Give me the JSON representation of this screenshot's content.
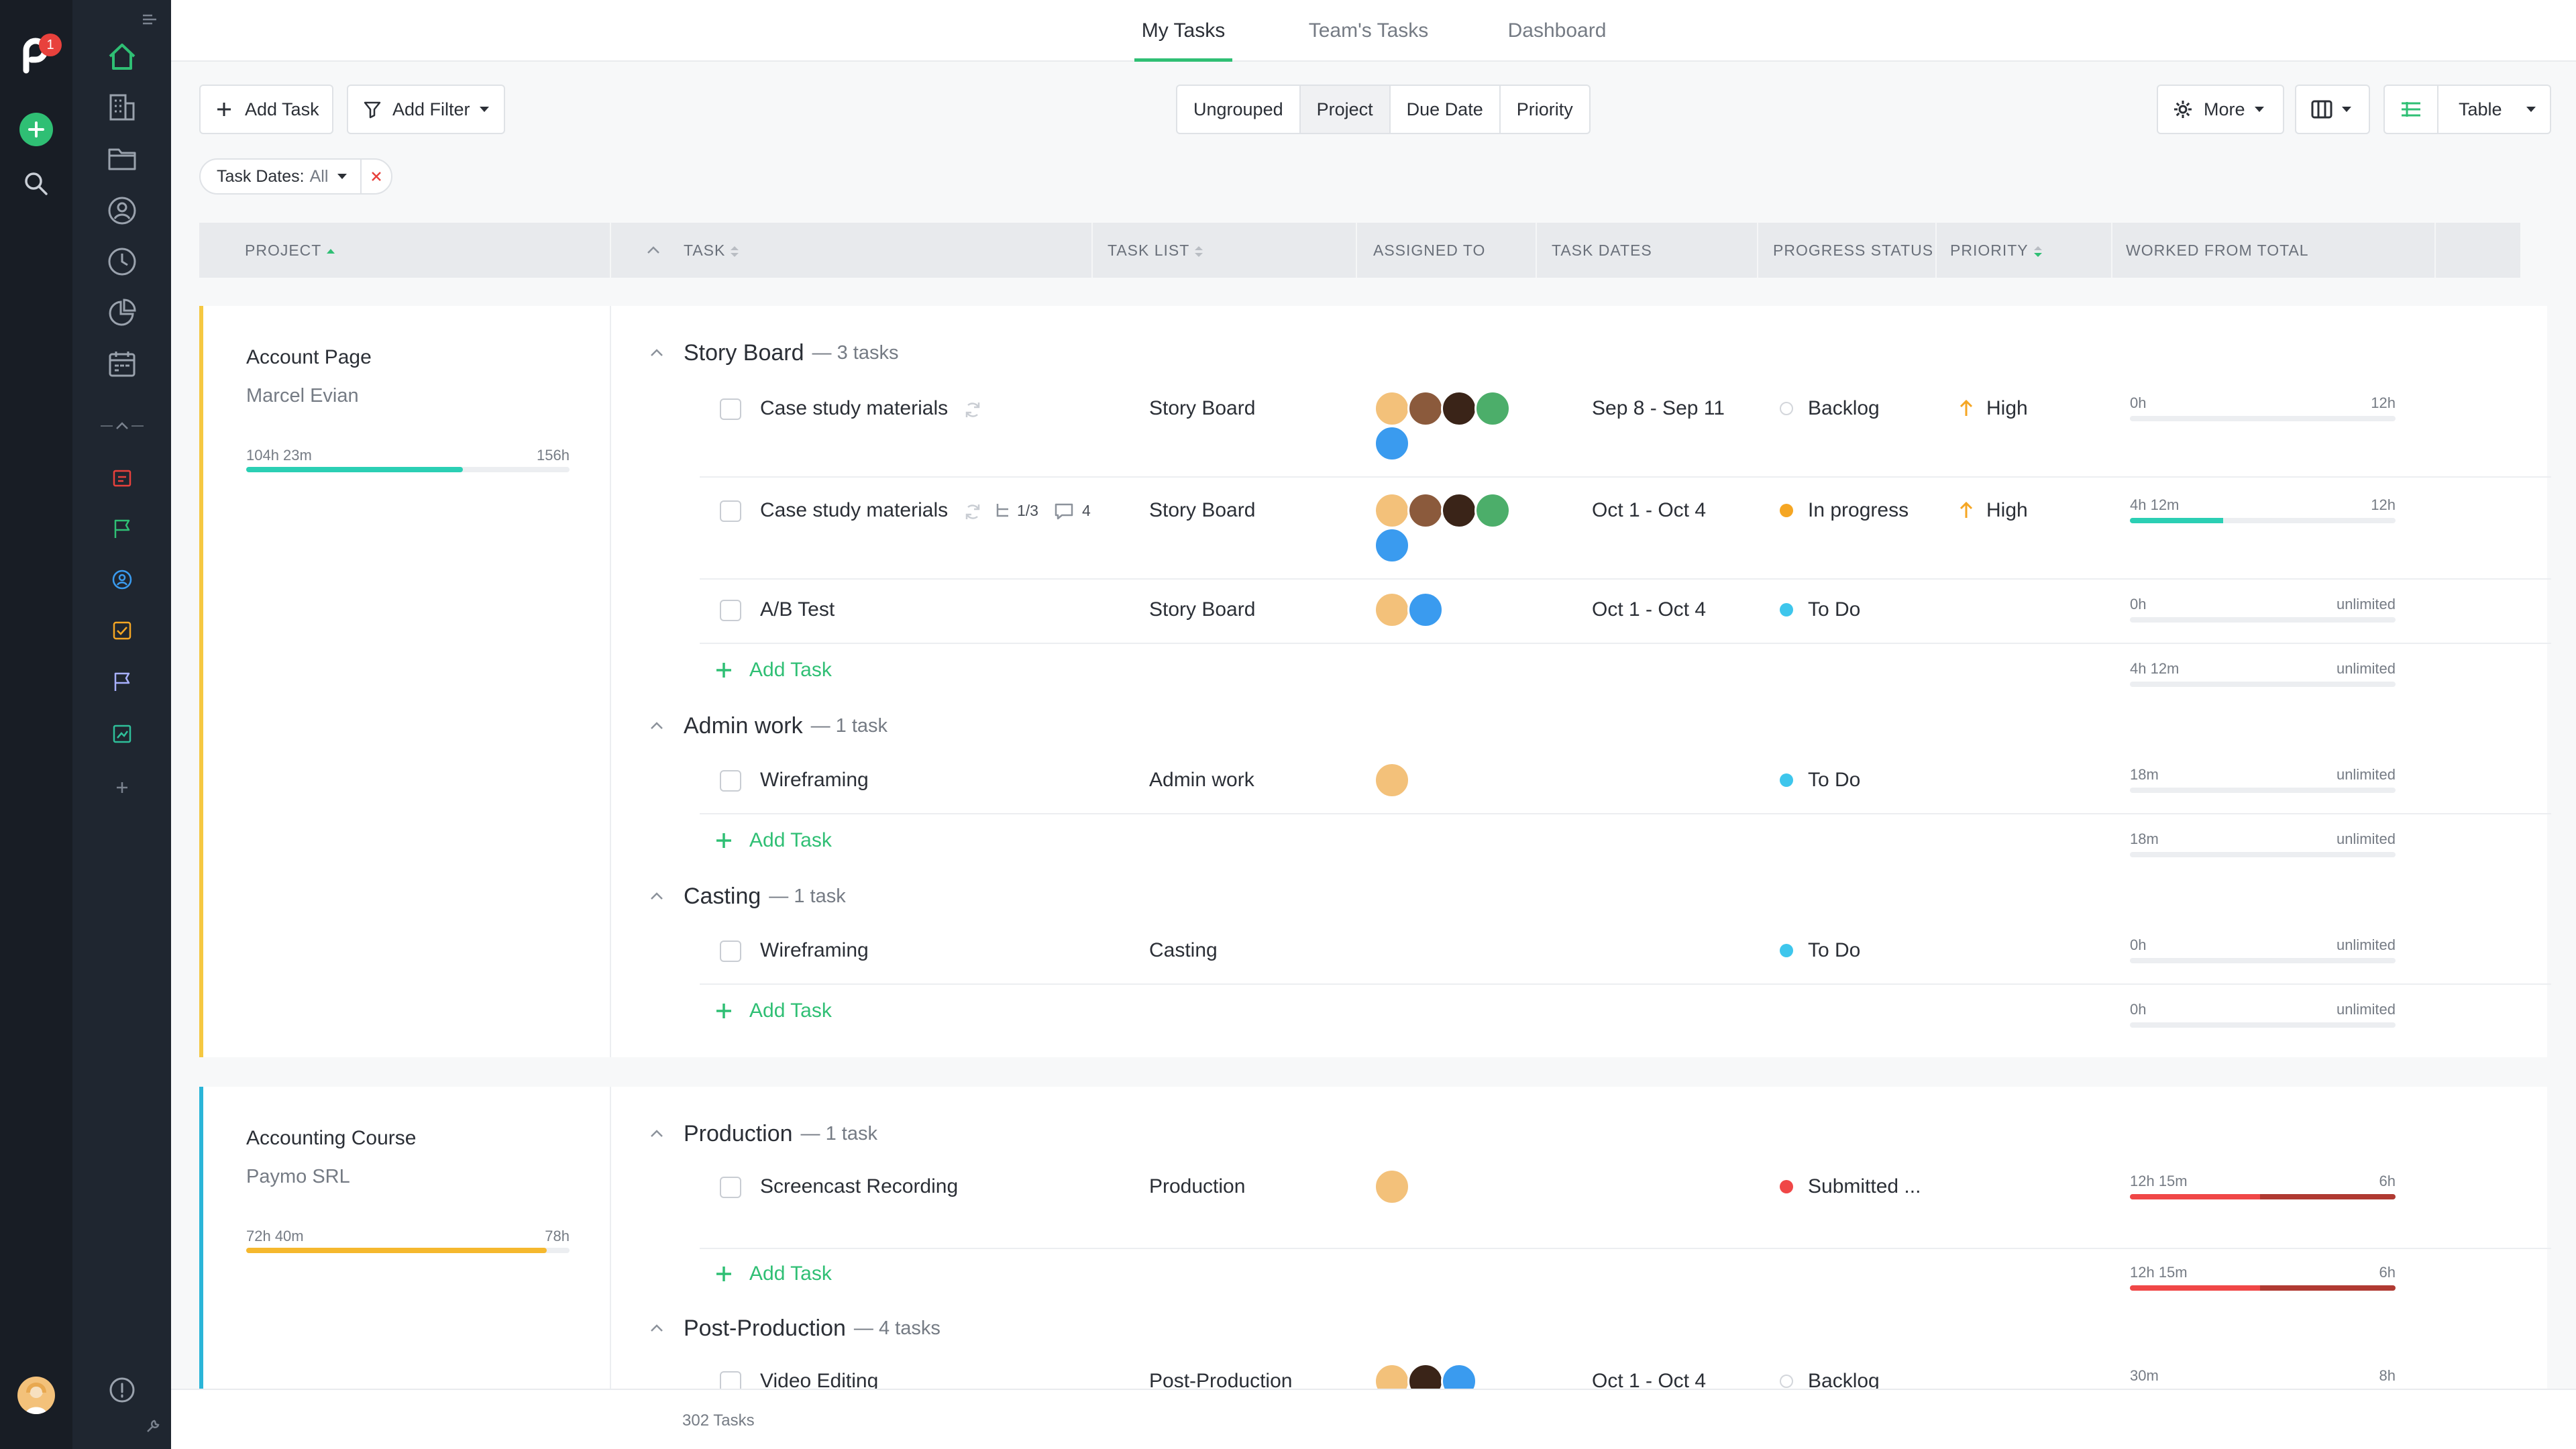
{
  "app": {
    "notification_count": "1"
  },
  "topnav": {
    "tabs": [
      "My Tasks",
      "Team's Tasks",
      "Dashboard"
    ]
  },
  "toolbar": {
    "add_task": "Add Task",
    "add_filter": "Add Filter",
    "grouping": [
      "Ungrouped",
      "Project",
      "Due Date",
      "Priority"
    ],
    "active_grouping": "Project",
    "more": "More",
    "view": "Table"
  },
  "filter_chip": {
    "label": "Task Dates:",
    "value": "All"
  },
  "columns": {
    "project": "PROJECT",
    "task": "TASK",
    "task_list": "TASK LIST",
    "assigned_to": "ASSIGNED TO",
    "task_dates": "TASK DATES",
    "progress_status": "PROGRESS STATUS",
    "priority": "PRIORITY",
    "worked_from_total": "WORKED FROM TOTAL"
  },
  "add_task_label": "Add Task",
  "projects": [
    {
      "name": "Account Page",
      "client": "Marcel Evian",
      "worked": "104h 23m",
      "total": "156h",
      "progress": 0.67,
      "accent": "#f5c842",
      "groups": [
        {
          "name": "Story Board",
          "count": "— 3 tasks",
          "totals": {
            "worked": "4h 12m",
            "total": "unlimited"
          }
        },
        {
          "name": "Admin work",
          "count": "— 1 task",
          "totals": {
            "worked": "18m",
            "total": "unlimited"
          }
        },
        {
          "name": "Casting",
          "count": "— 1 task",
          "totals": {
            "worked": "0h",
            "total": "unlimited"
          }
        }
      ],
      "tasks": [
        {
          "name": "Case study materials",
          "list": "Story Board",
          "dates": "Sep 8 - Sep 11",
          "status": "Backlog",
          "priority": "High",
          "worked": "0h",
          "total": "12h"
        },
        {
          "name": "Case study materials",
          "subtasks": "1/3",
          "comments": "4",
          "list": "Story Board",
          "dates": "Oct 1 - Oct 4",
          "status": "In progress",
          "priority": "High",
          "worked": "4h 12m",
          "total": "12h"
        },
        {
          "name": "A/B Test",
          "list": "Story Board",
          "dates": "Oct 1 - Oct 4",
          "status": "To Do",
          "worked": "0h",
          "total": "unlimited"
        },
        {
          "name": "Wireframing",
          "list": "Admin work",
          "status": "To Do",
          "worked": "18m",
          "total": "unlimited"
        },
        {
          "name": "Wireframing",
          "list": "Casting",
          "status": "To Do",
          "worked": "0h",
          "total": "unlimited"
        }
      ]
    },
    {
      "name": "Accounting Course",
      "client": "Paymo SRL",
      "worked": "72h 40m",
      "total": "78h",
      "progress": 0.93,
      "accent": "#f5b82e",
      "groups": [
        {
          "name": "Production",
          "count": "— 1 task",
          "totals": {
            "worked": "12h 15m",
            "total": "6h"
          }
        },
        {
          "name": "Post-Production",
          "count": "— 4 tasks"
        }
      ],
      "tasks": [
        {
          "name": "Screencast Recording",
          "list": "Production",
          "status": "Submitted ...",
          "worked": "12h 15m",
          "total": "6h"
        },
        {
          "name": "Video Editing",
          "list": "Post-Production",
          "dates": "Oct 1 - Oct 4",
          "status": "Backlog",
          "worked": "30m",
          "total": "8h"
        }
      ]
    }
  ],
  "footer": {
    "count": "302 Tasks"
  },
  "colors": {
    "accent_green": "#2fbf74",
    "in_progress": "#f5a623",
    "todo": "#3ec6ec",
    "submitted": "#f04747",
    "rail_dark": "#181d25"
  }
}
